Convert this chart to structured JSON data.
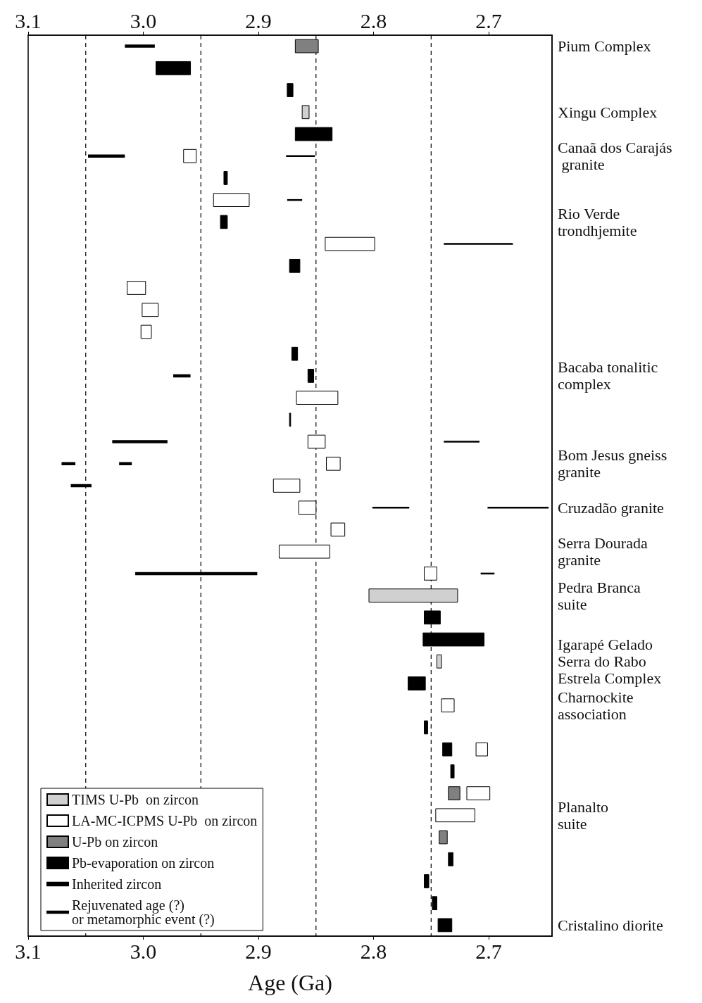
{
  "chart_data": {
    "type": "bar",
    "orientation": "horizontal",
    "xlabel": "Age (Ga)",
    "categories": [
      "Pium Complex",
      null,
      null,
      "Xingu Complex",
      null,
      "Canaã dos Carajás\n granite",
      null,
      null,
      "Rio Verde\ntrondhjemite",
      null,
      null,
      null,
      null,
      null,
      null,
      "Bacaba tonalitic\ncomplex",
      null,
      null,
      null,
      "Bom Jesus gneiss\ngranite",
      null,
      "Cruzadão granite",
      null,
      "Serra Dourada\ngranite",
      null,
      "Pedra Branca\nsuite",
      null,
      null,
      "Igarapé Gelado\nSerra do Rabo\nEstrela Complex",
      null,
      "Charnockite\nassociation",
      null,
      null,
      null,
      null,
      "Planalto\nsuite",
      null,
      null,
      null,
      null,
      "Cristalino diorite"
    ],
    "xlim": [
      3.1,
      2.645
    ],
    "xticks": [
      3.1,
      {
        "value": 3,
        "label": "3.0"
      },
      2.9,
      2.8,
      2.7
    ],
    "x2lim": [
      3.1,
      2.645
    ],
    "x2ticks": [
      3.1,
      {
        "value": 3,
        "label": "3.0"
      },
      2.9,
      2.8,
      2.7
    ],
    "grid": false,
    "legend": "bottom left",
    "ref_lines": [
      {
        "axis": "x",
        "value": 3.05,
        "line_style": "dashed"
      },
      {
        "axis": "x",
        "value": 2.95,
        "line_style": "dashed"
      },
      {
        "axis": "x",
        "value": 2.85,
        "line_style": "dashed"
      },
      {
        "axis": "x",
        "value": 2.75,
        "line_style": "dashed"
      }
    ],
    "series": [
      {
        "name": "TIMS U-Pb  on zircon",
        "color": "#d0d0d0",
        "values": [
          null,
          null,
          null,
          0.006,
          null,
          null,
          null,
          null,
          null,
          null,
          null,
          null,
          null,
          null,
          null,
          null,
          null,
          null,
          null,
          null,
          null,
          null,
          null,
          null,
          null,
          0.077,
          null,
          null,
          0.004,
          null,
          null,
          null,
          null,
          null,
          null,
          null,
          null,
          null,
          null,
          null,
          null
        ],
        "base": [
          null,
          null,
          null,
          2.856,
          null,
          null,
          null,
          null,
          null,
          null,
          null,
          null,
          null,
          null,
          null,
          null,
          null,
          null,
          null,
          null,
          null,
          null,
          null,
          null,
          null,
          2.727,
          null,
          null,
          2.741,
          null,
          null,
          null,
          null,
          null,
          null,
          null,
          null,
          null,
          null,
          null,
          null
        ]
      },
      {
        "name": "LA-MC-ICPMS U-Pb  on zircon",
        "color": "#ffffff",
        "values": [
          null,
          null,
          null,
          null,
          null,
          0.011,
          null,
          0.031,
          null,
          0.043,
          null,
          0.016,
          0.014,
          0.009,
          null,
          null,
          0.036,
          null,
          0.015,
          0.012,
          0.023,
          0.015,
          0.012,
          0.044,
          0.011,
          null,
          null,
          null,
          null,
          null,
          0.011,
          null,
          0.01,
          null,
          0.02,
          0.034,
          null,
          null,
          null,
          null,
          null
        ],
        "base": [
          null,
          null,
          null,
          null,
          null,
          2.954,
          null,
          2.908,
          null,
          2.799,
          null,
          2.998,
          2.987,
          2.993,
          null,
          null,
          2.831,
          null,
          2.842,
          2.829,
          2.864,
          2.85,
          2.825,
          2.838,
          2.745,
          null,
          null,
          null,
          null,
          null,
          2.73,
          null,
          2.701,
          null,
          2.699,
          2.712,
          null,
          null,
          null,
          null,
          null
        ]
      },
      {
        "name": "U-Pb on zircon",
        "color": "#808080",
        "values": [
          0.02,
          null,
          null,
          null,
          null,
          null,
          null,
          null,
          null,
          null,
          null,
          null,
          null,
          null,
          null,
          null,
          null,
          null,
          null,
          null,
          null,
          null,
          null,
          null,
          null,
          null,
          null,
          null,
          null,
          null,
          null,
          null,
          null,
          null,
          0.01,
          null,
          0.007,
          null,
          null,
          null,
          null
        ],
        "base": [
          2.848,
          null,
          null,
          null,
          null,
          null,
          null,
          null,
          null,
          null,
          null,
          null,
          null,
          null,
          null,
          null,
          null,
          null,
          null,
          null,
          null,
          null,
          null,
          null,
          null,
          null,
          null,
          null,
          null,
          null,
          null,
          null,
          null,
          null,
          2.725,
          null,
          2.736,
          null,
          null,
          null,
          null
        ]
      },
      {
        "name": "Pb-evaporation on zircon",
        "color": "#000000",
        "values": [
          null,
          0.03,
          0.005,
          null,
          0.032,
          null,
          0.003,
          null,
          0.006,
          null,
          0.009,
          null,
          null,
          null,
          0.005,
          0.005,
          null,
          0.001,
          null,
          null,
          null,
          null,
          null,
          null,
          null,
          null,
          0.014,
          0.053,
          null,
          0.015,
          null,
          0.003,
          0.008,
          0.003,
          null,
          null,
          null,
          0.004,
          0.004,
          0.004,
          0.012
        ],
        "base": [
          null,
          2.959,
          2.87,
          null,
          2.836,
          null,
          2.927,
          null,
          2.927,
          null,
          2.864,
          null,
          null,
          null,
          2.866,
          2.852,
          null,
          2.872,
          null,
          null,
          null,
          null,
          null,
          null,
          null,
          null,
          2.742,
          2.704,
          null,
          2.755,
          null,
          2.753,
          2.732,
          2.73,
          null,
          null,
          null,
          2.731,
          2.752,
          2.745,
          2.732
        ]
      },
      {
        "name": "Inherited zircon",
        "color": "#000000",
        "marker": "square",
        "values": [
          0.026,
          null,
          null,
          null,
          null,
          0.032,
          null,
          null,
          null,
          null,
          null,
          null,
          null,
          null,
          null,
          0.015,
          null,
          null,
          0.048,
          0.012,
          0.018,
          null,
          null,
          null,
          0.106,
          null,
          null,
          null,
          null,
          null,
          null,
          null,
          null,
          null,
          null,
          null,
          null,
          null,
          null,
          null,
          null
        ],
        "base": [
          2.99,
          null,
          null,
          null,
          null,
          3.016,
          null,
          null,
          null,
          null,
          null,
          null,
          null,
          null,
          null,
          2.959,
          null,
          null,
          2.979,
          3.059,
          3.045,
          null,
          null,
          null,
          2.901,
          null,
          null,
          null,
          null,
          null,
          null,
          null,
          null,
          null,
          null,
          null,
          null,
          null,
          null,
          null,
          null
        ]
      },
      {
        "color": "#000000",
        "marker": "square",
        "values": [
          null,
          null,
          null,
          null,
          null,
          null,
          null,
          null,
          null,
          null,
          null,
          null,
          null,
          null,
          null,
          null,
          null,
          null,
          null,
          0.011,
          null,
          null,
          null,
          null,
          null,
          null,
          null,
          null,
          null,
          null,
          null,
          null,
          null,
          null,
          null,
          null,
          null,
          null,
          null,
          null,
          null
        ],
        "base": [
          null,
          null,
          null,
          null,
          null,
          null,
          null,
          null,
          null,
          null,
          null,
          null,
          null,
          null,
          null,
          null,
          null,
          null,
          null,
          3.01,
          null,
          null,
          null,
          null,
          null,
          null,
          null,
          null,
          null,
          null,
          null,
          null,
          null,
          null,
          null,
          null,
          null,
          null,
          null,
          null,
          null
        ]
      },
      {
        "name": "Rejuvenated age (?)\nor metamorphic event (?)",
        "color": "#000000",
        "marker": "none",
        "values": [
          null,
          null,
          null,
          null,
          null,
          0.025,
          null,
          0.013,
          null,
          0.06,
          null,
          null,
          null,
          null,
          null,
          null,
          null,
          null,
          0.031,
          null,
          null,
          0.032,
          null,
          null,
          0.012,
          null,
          null,
          null,
          null,
          null,
          null,
          null,
          null,
          null,
          null,
          null,
          null,
          null,
          null,
          null,
          null
        ],
        "base": [
          null,
          null,
          null,
          null,
          null,
          2.851,
          null,
          2.862,
          null,
          2.679,
          null,
          null,
          null,
          null,
          null,
          null,
          null,
          null,
          2.708,
          null,
          null,
          2.769,
          null,
          null,
          2.695,
          null,
          null,
          null,
          null,
          null,
          null,
          null,
          null,
          null,
          null,
          null,
          null,
          null,
          null,
          null,
          null
        ]
      },
      {
        "color": "#000000",
        "marker": "none",
        "values": [
          null,
          null,
          null,
          null,
          null,
          null,
          null,
          null,
          null,
          null,
          null,
          null,
          null,
          null,
          null,
          null,
          null,
          null,
          null,
          null,
          null,
          0.053,
          null,
          null,
          null,
          null,
          null,
          null,
          null,
          null,
          null,
          null,
          null,
          null,
          null,
          null,
          null,
          null,
          null,
          null,
          null
        ],
        "base": [
          null,
          null,
          null,
          null,
          null,
          null,
          null,
          null,
          null,
          null,
          null,
          null,
          null,
          null,
          null,
          null,
          null,
          null,
          null,
          null,
          null,
          2.648,
          null,
          null,
          null,
          null,
          null,
          null,
          null,
          null,
          null,
          null,
          null,
          null,
          null,
          null,
          null,
          null,
          null,
          null,
          null
        ]
      }
    ]
  }
}
